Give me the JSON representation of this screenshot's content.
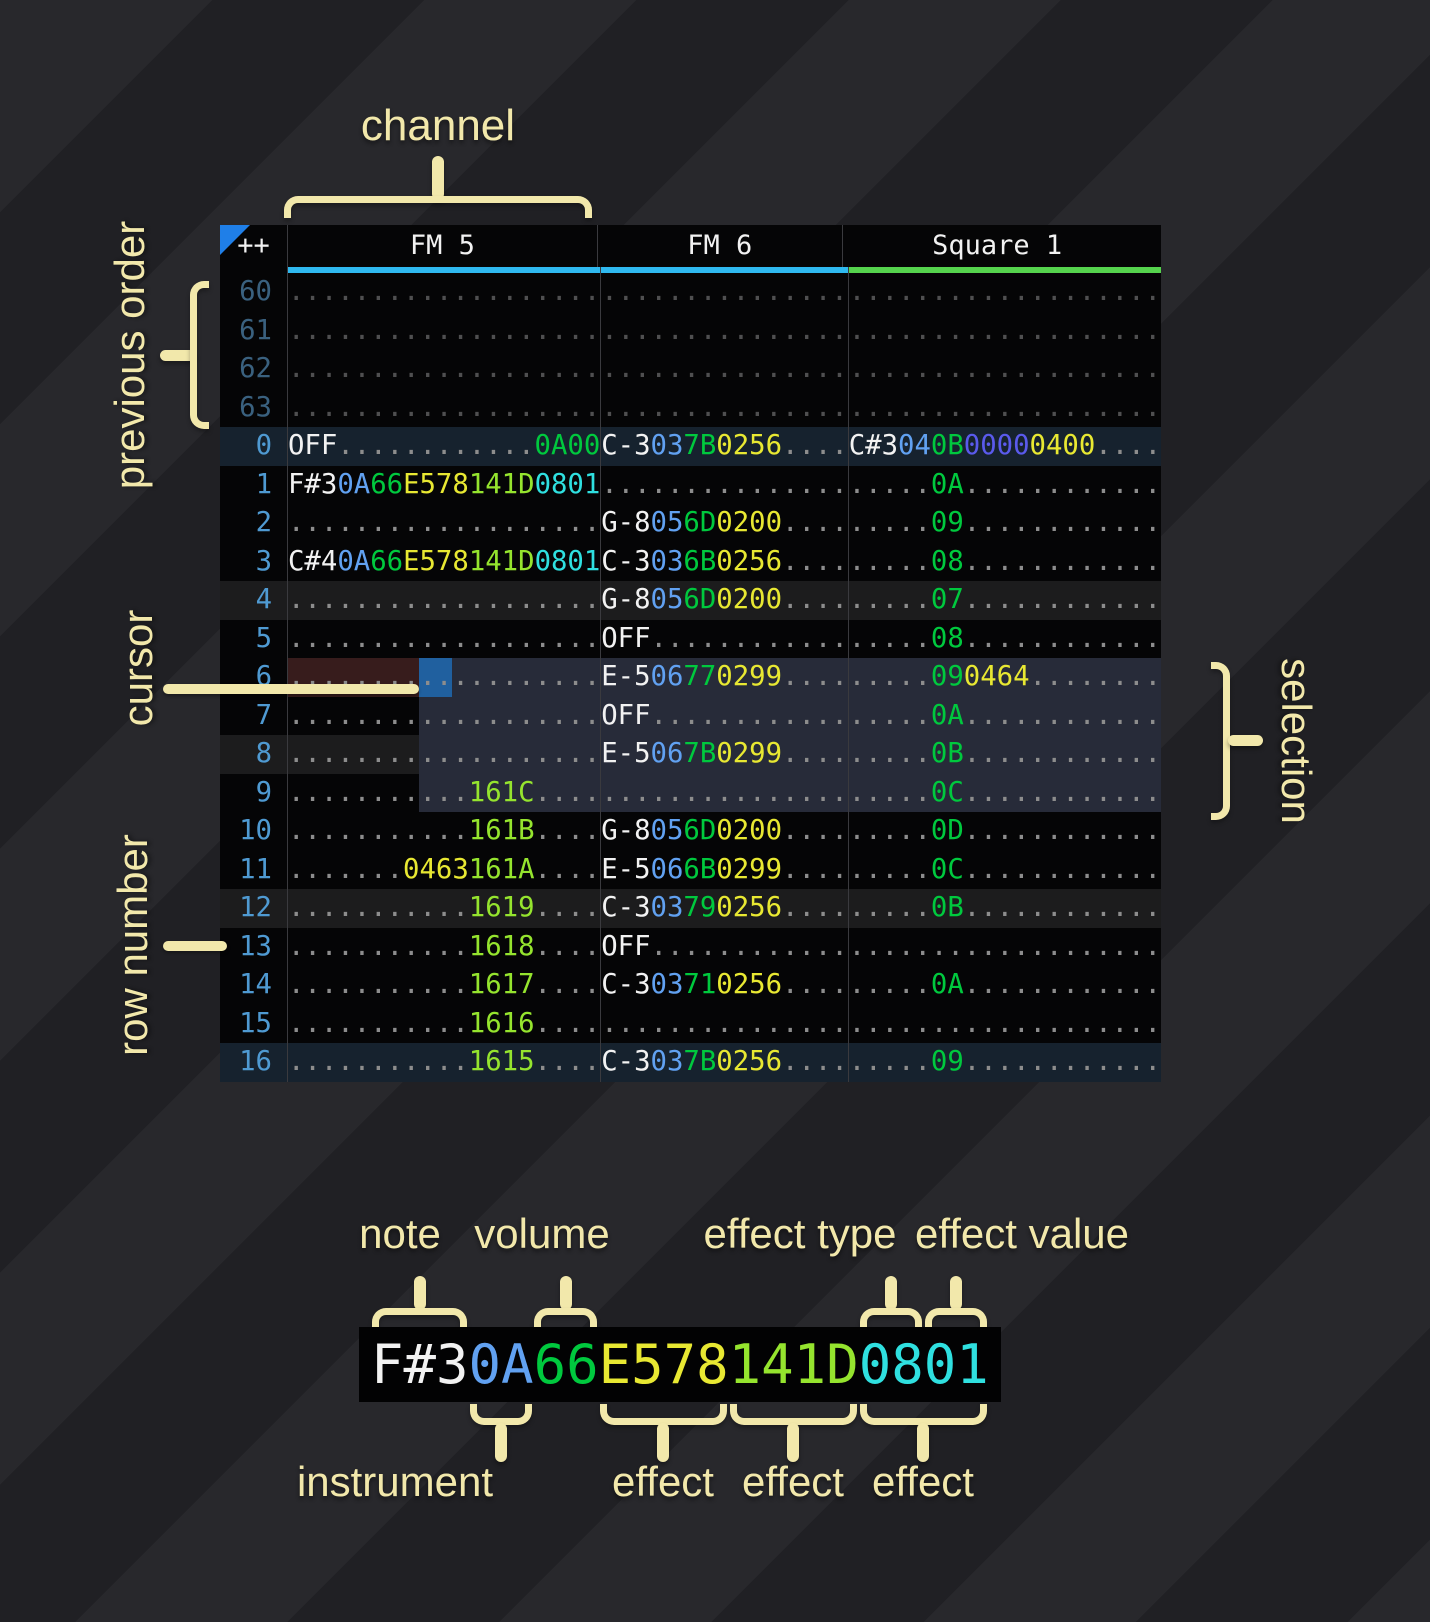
{
  "annotations": {
    "channel": "channel",
    "previous_order": "previous order",
    "cursor": "cursor",
    "row_number": "row number",
    "selection": "selection",
    "accent_color": "#f2e8ab"
  },
  "tracker": {
    "corner_label": "++",
    "order_marker_color": "#1f7fe8",
    "channels": [
      {
        "name": "FM 5",
        "underline_color": "#2fb9ef",
        "char_width": 19
      },
      {
        "name": "FM 6",
        "underline_color": "#2fb9ef",
        "char_width": 15
      },
      {
        "name": "Square 1",
        "underline_color": "#55d34d",
        "char_width": 19
      }
    ],
    "colors": {
      "n": "#f2f2f2",
      "i": "#61a1f1",
      "v": "#00c93e",
      "y": "#e8e832",
      "g": "#95e42e",
      "c": "#2fe0e0",
      "b": "#5a5aec",
      "d": "#8d8d8d"
    },
    "cursor": {
      "row": 6,
      "channel": 0,
      "char_start": 8,
      "char_span": 2,
      "color": "#20609f",
      "row_tint": "#371c1c"
    },
    "selection": {
      "row_start": 6,
      "row_end": 9,
      "channel_start": 0,
      "char_start": 8,
      "color": "#272b39"
    },
    "previous_order_rows": [
      {
        "num": "60",
        "cells": [
          [
            [
              "d",
              "..................."
            ]
          ],
          [
            [
              "d",
              "..............."
            ]
          ],
          [
            [
              "d",
              "..................."
            ]
          ]
        ]
      },
      {
        "num": "61",
        "cells": [
          [
            [
              "d",
              "..................."
            ]
          ],
          [
            [
              "d",
              "..............."
            ]
          ],
          [
            [
              "d",
              "..................."
            ]
          ]
        ]
      },
      {
        "num": "62",
        "cells": [
          [
            [
              "d",
              "..................."
            ]
          ],
          [
            [
              "d",
              "..............."
            ]
          ],
          [
            [
              "d",
              "..................."
            ]
          ]
        ]
      },
      {
        "num": "63",
        "cells": [
          [
            [
              "d",
              "..................."
            ]
          ],
          [
            [
              "d",
              "..............."
            ]
          ],
          [
            [
              "d",
              "..................."
            ]
          ]
        ]
      }
    ],
    "rows": [
      {
        "num": "0",
        "h": "major",
        "cells": [
          [
            [
              "n",
              "OFF"
            ],
            [
              "d",
              "............"
            ],
            [
              "v",
              "0A00"
            ]
          ],
          [
            [
              "n",
              "C-3"
            ],
            [
              "i",
              "03"
            ],
            [
              "v",
              "7B"
            ],
            [
              "y",
              "0256"
            ],
            [
              "d",
              "...."
            ]
          ],
          [
            [
              "n",
              "C#3"
            ],
            [
              "i",
              "04"
            ],
            [
              "v",
              "0B"
            ],
            [
              "b",
              "0000"
            ],
            [
              "y",
              "0400"
            ],
            [
              "d",
              "...."
            ]
          ]
        ]
      },
      {
        "num": "1",
        "h": "",
        "cells": [
          [
            [
              "n",
              "F#3"
            ],
            [
              "i",
              "0A"
            ],
            [
              "v",
              "66"
            ],
            [
              "y",
              "E578"
            ],
            [
              "g",
              "141D"
            ],
            [
              "c",
              "0801"
            ]
          ],
          [
            [
              "d",
              "..............."
            ]
          ],
          [
            [
              "d",
              "....."
            ],
            [
              "v",
              "0A"
            ],
            [
              "d",
              "............"
            ]
          ]
        ]
      },
      {
        "num": "2",
        "h": "",
        "cells": [
          [
            [
              "d",
              "..................."
            ]
          ],
          [
            [
              "n",
              "G-8"
            ],
            [
              "i",
              "05"
            ],
            [
              "v",
              "6D"
            ],
            [
              "y",
              "0200"
            ],
            [
              "d",
              "...."
            ]
          ],
          [
            [
              "d",
              "....."
            ],
            [
              "v",
              "09"
            ],
            [
              "d",
              "............"
            ]
          ]
        ]
      },
      {
        "num": "3",
        "h": "",
        "cells": [
          [
            [
              "n",
              "C#4"
            ],
            [
              "i",
              "0A"
            ],
            [
              "v",
              "66"
            ],
            [
              "y",
              "E578"
            ],
            [
              "g",
              "141D"
            ],
            [
              "c",
              "0801"
            ]
          ],
          [
            [
              "n",
              "C-3"
            ],
            [
              "i",
              "03"
            ],
            [
              "v",
              "6B"
            ],
            [
              "y",
              "0256"
            ],
            [
              "d",
              "...."
            ]
          ],
          [
            [
              "d",
              "....."
            ],
            [
              "v",
              "08"
            ],
            [
              "d",
              "............"
            ]
          ]
        ]
      },
      {
        "num": "4",
        "h": "minor",
        "cells": [
          [
            [
              "d",
              "..................."
            ]
          ],
          [
            [
              "n",
              "G-8"
            ],
            [
              "i",
              "05"
            ],
            [
              "v",
              "6D"
            ],
            [
              "y",
              "0200"
            ],
            [
              "d",
              "...."
            ]
          ],
          [
            [
              "d",
              "....."
            ],
            [
              "v",
              "07"
            ],
            [
              "d",
              "............"
            ]
          ]
        ]
      },
      {
        "num": "5",
        "h": "",
        "cells": [
          [
            [
              "d",
              "..................."
            ]
          ],
          [
            [
              "n",
              "OFF"
            ],
            [
              "d",
              "............"
            ]
          ],
          [
            [
              "d",
              "....."
            ],
            [
              "v",
              "08"
            ],
            [
              "d",
              "............"
            ]
          ]
        ]
      },
      {
        "num": "6",
        "h": "",
        "cells": [
          [
            [
              "d",
              "..................."
            ]
          ],
          [
            [
              "n",
              "E-5"
            ],
            [
              "i",
              "06"
            ],
            [
              "v",
              "77"
            ],
            [
              "y",
              "0299"
            ],
            [
              "d",
              "...."
            ]
          ],
          [
            [
              "d",
              "....."
            ],
            [
              "v",
              "09"
            ],
            [
              "y",
              "0464"
            ],
            [
              "d",
              "........"
            ]
          ]
        ]
      },
      {
        "num": "7",
        "h": "",
        "cells": [
          [
            [
              "d",
              "..................."
            ]
          ],
          [
            [
              "n",
              "OFF"
            ],
            [
              "d",
              "............"
            ]
          ],
          [
            [
              "d",
              "....."
            ],
            [
              "v",
              "0A"
            ],
            [
              "d",
              "............"
            ]
          ]
        ]
      },
      {
        "num": "8",
        "h": "minor",
        "cells": [
          [
            [
              "d",
              "..................."
            ]
          ],
          [
            [
              "n",
              "E-5"
            ],
            [
              "i",
              "06"
            ],
            [
              "v",
              "7B"
            ],
            [
              "y",
              "0299"
            ],
            [
              "d",
              "...."
            ]
          ],
          [
            [
              "d",
              "....."
            ],
            [
              "v",
              "0B"
            ],
            [
              "d",
              "............"
            ]
          ]
        ]
      },
      {
        "num": "9",
        "h": "",
        "cells": [
          [
            [
              "d",
              "..........."
            ],
            [
              "g",
              "161C"
            ],
            [
              "d",
              "...."
            ]
          ],
          [
            [
              "d",
              "..............."
            ]
          ],
          [
            [
              "d",
              "....."
            ],
            [
              "v",
              "0C"
            ],
            [
              "d",
              "............"
            ]
          ]
        ]
      },
      {
        "num": "10",
        "h": "",
        "cells": [
          [
            [
              "d",
              "..........."
            ],
            [
              "g",
              "161B"
            ],
            [
              "d",
              "...."
            ]
          ],
          [
            [
              "n",
              "G-8"
            ],
            [
              "i",
              "05"
            ],
            [
              "v",
              "6D"
            ],
            [
              "y",
              "0200"
            ],
            [
              "d",
              "...."
            ]
          ],
          [
            [
              "d",
              "....."
            ],
            [
              "v",
              "0D"
            ],
            [
              "d",
              "............"
            ]
          ]
        ]
      },
      {
        "num": "11",
        "h": "",
        "cells": [
          [
            [
              "d",
              "......."
            ],
            [
              "y",
              "0463"
            ],
            [
              "g",
              "161A"
            ],
            [
              "d",
              "...."
            ]
          ],
          [
            [
              "n",
              "E-5"
            ],
            [
              "i",
              "06"
            ],
            [
              "v",
              "6B"
            ],
            [
              "y",
              "0299"
            ],
            [
              "d",
              "...."
            ]
          ],
          [
            [
              "d",
              "....."
            ],
            [
              "v",
              "0C"
            ],
            [
              "d",
              "............"
            ]
          ]
        ]
      },
      {
        "num": "12",
        "h": "minor",
        "cells": [
          [
            [
              "d",
              "..........."
            ],
            [
              "g",
              "1619"
            ],
            [
              "d",
              "...."
            ]
          ],
          [
            [
              "n",
              "C-3"
            ],
            [
              "i",
              "03"
            ],
            [
              "v",
              "79"
            ],
            [
              "y",
              "0256"
            ],
            [
              "d",
              "...."
            ]
          ],
          [
            [
              "d",
              "....."
            ],
            [
              "v",
              "0B"
            ],
            [
              "d",
              "............"
            ]
          ]
        ]
      },
      {
        "num": "13",
        "h": "",
        "cells": [
          [
            [
              "d",
              "..........."
            ],
            [
              "g",
              "1618"
            ],
            [
              "d",
              "...."
            ]
          ],
          [
            [
              "n",
              "OFF"
            ],
            [
              "d",
              "............"
            ]
          ],
          [
            [
              "d",
              "..................."
            ]
          ]
        ]
      },
      {
        "num": "14",
        "h": "",
        "cells": [
          [
            [
              "d",
              "..........."
            ],
            [
              "g",
              "1617"
            ],
            [
              "d",
              "...."
            ]
          ],
          [
            [
              "n",
              "C-3"
            ],
            [
              "i",
              "03"
            ],
            [
              "v",
              "71"
            ],
            [
              "y",
              "0256"
            ],
            [
              "d",
              "...."
            ]
          ],
          [
            [
              "d",
              "....."
            ],
            [
              "v",
              "0A"
            ],
            [
              "d",
              "............"
            ]
          ]
        ]
      },
      {
        "num": "15",
        "h": "",
        "cells": [
          [
            [
              "d",
              "..........."
            ],
            [
              "g",
              "1616"
            ],
            [
              "d",
              "...."
            ]
          ],
          [
            [
              "d",
              "..............."
            ]
          ],
          [
            [
              "d",
              "..................."
            ]
          ]
        ]
      },
      {
        "num": "16",
        "h": "major",
        "cells": [
          [
            [
              "d",
              "..........."
            ],
            [
              "g",
              "1615"
            ],
            [
              "d",
              "...."
            ]
          ],
          [
            [
              "n",
              "C-3"
            ],
            [
              "i",
              "03"
            ],
            [
              "v",
              "7B"
            ],
            [
              "y",
              "0256"
            ],
            [
              "d",
              "...."
            ]
          ],
          [
            [
              "d",
              "....."
            ],
            [
              "v",
              "09"
            ],
            [
              "d",
              "............"
            ]
          ]
        ]
      }
    ]
  },
  "legend": {
    "segments": [
      [
        "n",
        "F#3"
      ],
      [
        "i",
        "0A"
      ],
      [
        "v",
        "66"
      ],
      [
        "y",
        "E578"
      ],
      [
        "g",
        "141D"
      ],
      [
        "c",
        "0801"
      ]
    ],
    "labels": {
      "note": "note",
      "volume": "volume",
      "effect_type": "effect type",
      "effect_value": "effect value",
      "instrument": "instrument",
      "effect": "effect"
    }
  }
}
